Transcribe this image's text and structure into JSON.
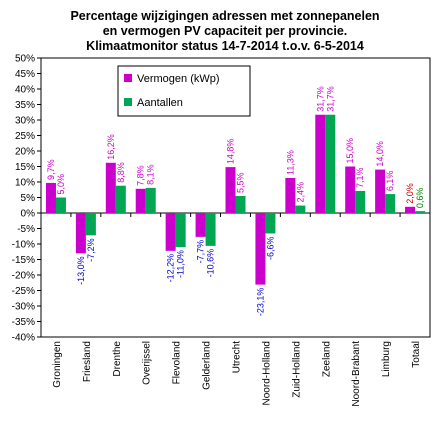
{
  "chart_data": {
    "type": "bar",
    "title_lines": [
      "Percentage wijzigingen  adressen met zonnepanelen",
      "en vermogen PV capaciteit per provincie.",
      "Klimaatmonitor  status 14-7-2014 t.o.v. 6-5-2014"
    ],
    "categories": [
      "Groningen",
      "Friesland",
      "Drenthe",
      "Overijssel",
      "Flevoland",
      "Gelderland",
      "Utrecht",
      "Noord-Holland",
      "Zuid-Holland",
      "Zeeland",
      "Noord-Brabant",
      "Limburg",
      "Totaal"
    ],
    "series": [
      {
        "name": "Vermogen (kWp)",
        "color": "#cc00cc",
        "values": [
          9.7,
          -13.0,
          16.2,
          7.8,
          -12.2,
          -7.7,
          14.8,
          -23.1,
          11.3,
          31.7,
          15.0,
          14.0,
          2.0
        ],
        "labels": [
          "9,7%",
          "-13,0%",
          "16,2%",
          "7,8%",
          "-12,2%",
          "-7,7%",
          "14,8%",
          "-23,1%",
          "11,3%",
          "31,7%",
          "15,0%",
          "14,0%",
          "2,0%"
        ]
      },
      {
        "name": "Aantallen",
        "color": "#00a651",
        "values": [
          5.0,
          -7.2,
          8.8,
          8.1,
          -11.0,
          -10.6,
          5.5,
          -6.6,
          2.4,
          31.7,
          7.1,
          6.1,
          0.6
        ],
        "labels": [
          "5,0%",
          "-7,2%",
          "8,8%",
          "8,1%",
          "-11,0%",
          "-10,6%",
          "5,5%",
          "-6,6%",
          "2,4%",
          "31,7%",
          "7,1%",
          "6,1%",
          "0,6%"
        ]
      }
    ],
    "ylim": [
      -40,
      50
    ],
    "yticks": [
      -40,
      -35,
      -30,
      -25,
      -20,
      -15,
      -10,
      -5,
      0,
      5,
      10,
      15,
      20,
      25,
      30,
      35,
      40,
      45,
      50
    ],
    "ytick_labels": [
      "-40%",
      "-35%",
      "-30%",
      "-25%",
      "-20%",
      "-15%",
      "-10%",
      "-5%",
      "0%",
      "5%",
      "10%",
      "15%",
      "20%",
      "25%",
      "30%",
      "35%",
      "40%",
      "45%",
      "50%"
    ],
    "grid": false,
    "legend_position": "top-right",
    "colors": {
      "label_positive": "#cc00cc",
      "label_negative": "#0000cc",
      "label_total": "#cc0000"
    }
  }
}
